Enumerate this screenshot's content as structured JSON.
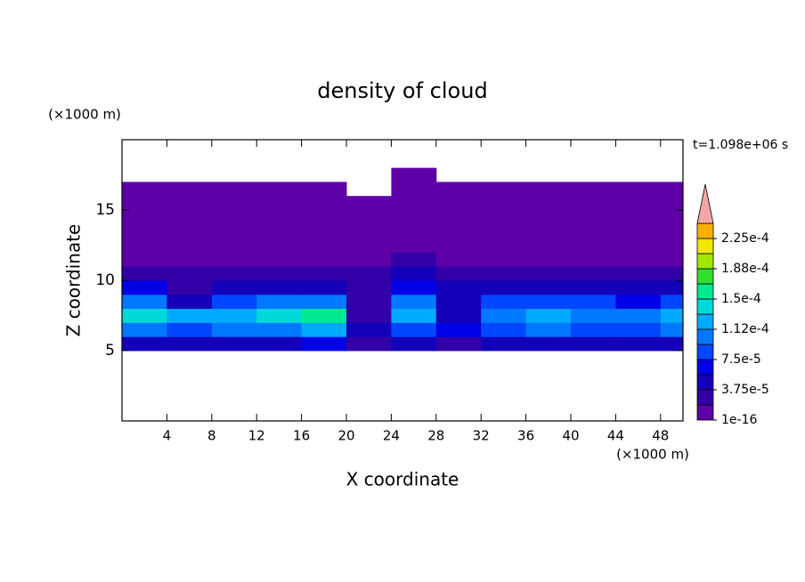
{
  "chart_data": {
    "type": "heatmap",
    "title": "density of cloud",
    "x_label": "X coordinate",
    "y_label": "Z coordinate",
    "x_unit": "(×1000 m)",
    "y_unit": "(×1000 m)",
    "annotation": "t=1.098e+06 s",
    "xlim": [
      0,
      50
    ],
    "ylim": [
      0,
      20
    ],
    "xticks": [
      4,
      8,
      12,
      16,
      20,
      24,
      28,
      32,
      36,
      40,
      44,
      48
    ],
    "yticks": [
      5,
      10,
      15
    ],
    "x_edges": [
      0,
      4,
      8,
      12,
      16,
      20,
      24,
      28,
      32,
      36,
      40,
      44,
      48,
      50
    ],
    "y_edges": [
      5,
      6,
      7,
      8,
      9,
      10,
      11,
      12,
      13,
      14,
      15,
      16,
      17,
      18
    ],
    "values": [
      [
        5e-05,
        4e-05,
        5e-05,
        5e-05,
        6e-05,
        3e-05,
        4e-05,
        2e-05,
        5e-05,
        5e-05,
        5e-05,
        5e-05,
        5e-05
      ],
      [
        0.00011,
        9e-05,
        0.0001,
        0.00011,
        0.00012,
        5e-05,
        9e-05,
        6e-05,
        9e-05,
        0.0001,
        9e-05,
        8e-05,
        0.0001
      ],
      [
        0.00014,
        0.00012,
        0.00012,
        0.00014,
        0.00015,
        2e-05,
        0.00013,
        5e-05,
        0.00011,
        0.00012,
        0.00011,
        0.0001,
        0.00013
      ],
      [
        0.0001,
        5e-05,
        8e-05,
        0.00011,
        0.00011,
        3e-05,
        0.0001,
        4e-05,
        8e-05,
        9e-05,
        8e-05,
        7e-05,
        9e-05
      ],
      [
        6e-05,
        3e-05,
        4e-05,
        5e-05,
        5e-05,
        3e-05,
        6e-05,
        4e-05,
        4e-05,
        4e-05,
        4e-05,
        4e-05,
        5e-05
      ],
      [
        3e-05,
        2e-05,
        2e-05,
        3e-05,
        2e-05,
        2e-05,
        4e-05,
        3e-05,
        2e-05,
        2e-05,
        2e-05,
        2e-05,
        2e-05
      ],
      [
        1e-05,
        1e-05,
        1e-05,
        1e-05,
        1e-05,
        1e-05,
        2e-05,
        1e-05,
        1e-05,
        1e-05,
        1e-05,
        1e-05,
        1e-05
      ],
      [
        5e-06,
        5e-06,
        5e-06,
        5e-06,
        5e-06,
        5e-06,
        5e-06,
        5e-06,
        5e-06,
        5e-06,
        5e-06,
        5e-06,
        5e-06
      ],
      [
        5e-06,
        5e-06,
        5e-06,
        5e-06,
        5e-06,
        5e-06,
        5e-06,
        5e-06,
        5e-06,
        5e-06,
        5e-06,
        5e-06,
        5e-06
      ],
      [
        5e-06,
        5e-06,
        5e-06,
        5e-06,
        5e-06,
        5e-06,
        5e-06,
        5e-06,
        5e-06,
        5e-06,
        5e-06,
        5e-06,
        5e-06
      ],
      [
        5e-06,
        5e-06,
        5e-06,
        5e-06,
        5e-06,
        5e-06,
        5e-06,
        5e-06,
        5e-06,
        5e-06,
        5e-06,
        5e-06,
        5e-06
      ],
      [
        5e-06,
        5e-06,
        5e-06,
        5e-06,
        5e-06,
        null,
        5e-06,
        5e-06,
        5e-06,
        5e-06,
        5e-06,
        5e-06,
        5e-06
      ],
      [
        null,
        null,
        null,
        null,
        null,
        null,
        5e-06,
        null,
        null,
        null,
        null,
        null,
        null
      ]
    ],
    "levels": [
      1e-16,
      1.875e-05,
      3.75e-05,
      5.625e-05,
      7.5e-05,
      9.375e-05,
      0.0001125,
      0.00013125,
      0.00015,
      0.00016875,
      0.0001875,
      0.00020625,
      0.000225
    ],
    "colors": [
      "#5e00a8",
      "#3200a6",
      "#1400b8",
      "#0000e6",
      "#0046ff",
      "#0078ff",
      "#00aaff",
      "#00d8d8",
      "#00e890",
      "#30e030",
      "#a0e800",
      "#f0e800",
      "#ffb000"
    ],
    "over_color": "#f4a6a6",
    "colorbar_ticks": [
      {
        "value": 1e-16,
        "label": "1e-16"
      },
      {
        "value": 3.75e-05,
        "label": "3.75e-5"
      },
      {
        "value": 7.5e-05,
        "label": "7.5e-5"
      },
      {
        "value": 0.0001125,
        "label": "1.12e-4"
      },
      {
        "value": 0.00015,
        "label": "1.5e-4"
      },
      {
        "value": 0.0001875,
        "label": "1.88e-4"
      },
      {
        "value": 0.000225,
        "label": "2.25e-4"
      }
    ]
  }
}
